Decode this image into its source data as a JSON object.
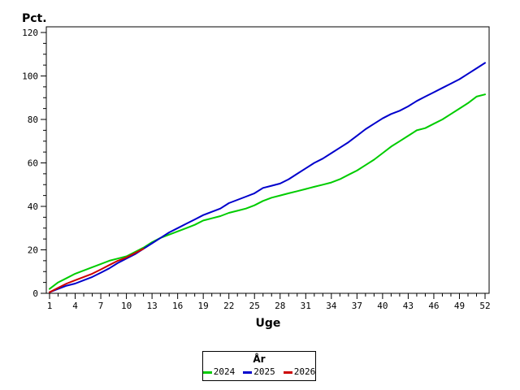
{
  "chart_data": {
    "type": "line",
    "title": "",
    "ylabel": "Pct.",
    "xlabel": "Uge",
    "ylim": [
      0,
      120
    ],
    "xlim": [
      1,
      52
    ],
    "grid": false,
    "y_axis": {
      "major_ticks": [
        0,
        20,
        40,
        60,
        80,
        100,
        120
      ],
      "minor_step": 5
    },
    "x_axis": {
      "major_ticks": [
        1,
        4,
        7,
        10,
        13,
        16,
        19,
        22,
        25,
        28,
        31,
        34,
        37,
        40,
        43,
        46,
        49,
        52
      ],
      "minor_step": 1
    },
    "legend": {
      "title": "År",
      "position": "bottom-center"
    },
    "series": [
      {
        "name": "2024",
        "color": "#00CC00",
        "x": [
          1,
          2,
          3,
          4,
          5,
          6,
          7,
          8,
          9,
          10,
          11,
          12,
          13,
          14,
          15,
          16,
          17,
          18,
          19,
          20,
          21,
          22,
          23,
          24,
          25,
          26,
          27,
          28,
          29,
          30,
          31,
          32,
          33,
          34,
          35,
          36,
          37,
          38,
          39,
          40,
          41,
          42,
          43,
          44,
          45,
          46,
          47,
          48,
          49,
          50,
          51,
          52
        ],
        "values": [
          2,
          5,
          7,
          9,
          10.5,
          12,
          13.5,
          15,
          16,
          17,
          19,
          21,
          23.5,
          25.5,
          27,
          28.5,
          30,
          31.5,
          33.5,
          34.5,
          35.5,
          37,
          38,
          39,
          40.5,
          42.5,
          44,
          45,
          46,
          47,
          48,
          49,
          50,
          51,
          52.5,
          54.5,
          56.5,
          59,
          61.5,
          64.5,
          67.5,
          70,
          72.5,
          75,
          76,
          78,
          80,
          82.5,
          85,
          87.5,
          90.5,
          91.5
        ]
      },
      {
        "name": "2025",
        "color": "#0000CC",
        "x": [
          1,
          2,
          3,
          4,
          5,
          6,
          7,
          8,
          9,
          10,
          11,
          12,
          13,
          14,
          15,
          16,
          17,
          18,
          19,
          20,
          21,
          22,
          23,
          24,
          25,
          26,
          27,
          28,
          29,
          30,
          31,
          32,
          33,
          34,
          35,
          36,
          37,
          38,
          39,
          40,
          41,
          42,
          43,
          44,
          45,
          46,
          47,
          48,
          49,
          50,
          51,
          52
        ],
        "values": [
          0.5,
          2,
          3.5,
          4.5,
          6,
          7.5,
          9.5,
          11.5,
          14,
          16,
          18,
          20.5,
          23,
          25.5,
          28,
          30,
          32,
          34,
          36,
          37.5,
          39,
          41.5,
          43,
          44.5,
          46,
          48.5,
          49.5,
          50.5,
          52.5,
          55,
          57.5,
          60,
          62,
          64.5,
          67,
          69.5,
          72.5,
          75.5,
          78,
          80.5,
          82.5,
          84,
          86,
          88.5,
          90.5,
          92.5,
          94.5,
          96.5,
          98.5,
          101,
          103.5,
          106
        ]
      },
      {
        "name": "2026",
        "color": "#CC0000",
        "x": [
          1,
          2,
          3,
          4,
          5,
          6,
          7,
          8,
          9,
          10,
          11,
          12
        ],
        "values": [
          0.5,
          2.5,
          4.5,
          6,
          7.5,
          9,
          11,
          13,
          15,
          16.5,
          18.5,
          20.5
        ]
      }
    ]
  }
}
